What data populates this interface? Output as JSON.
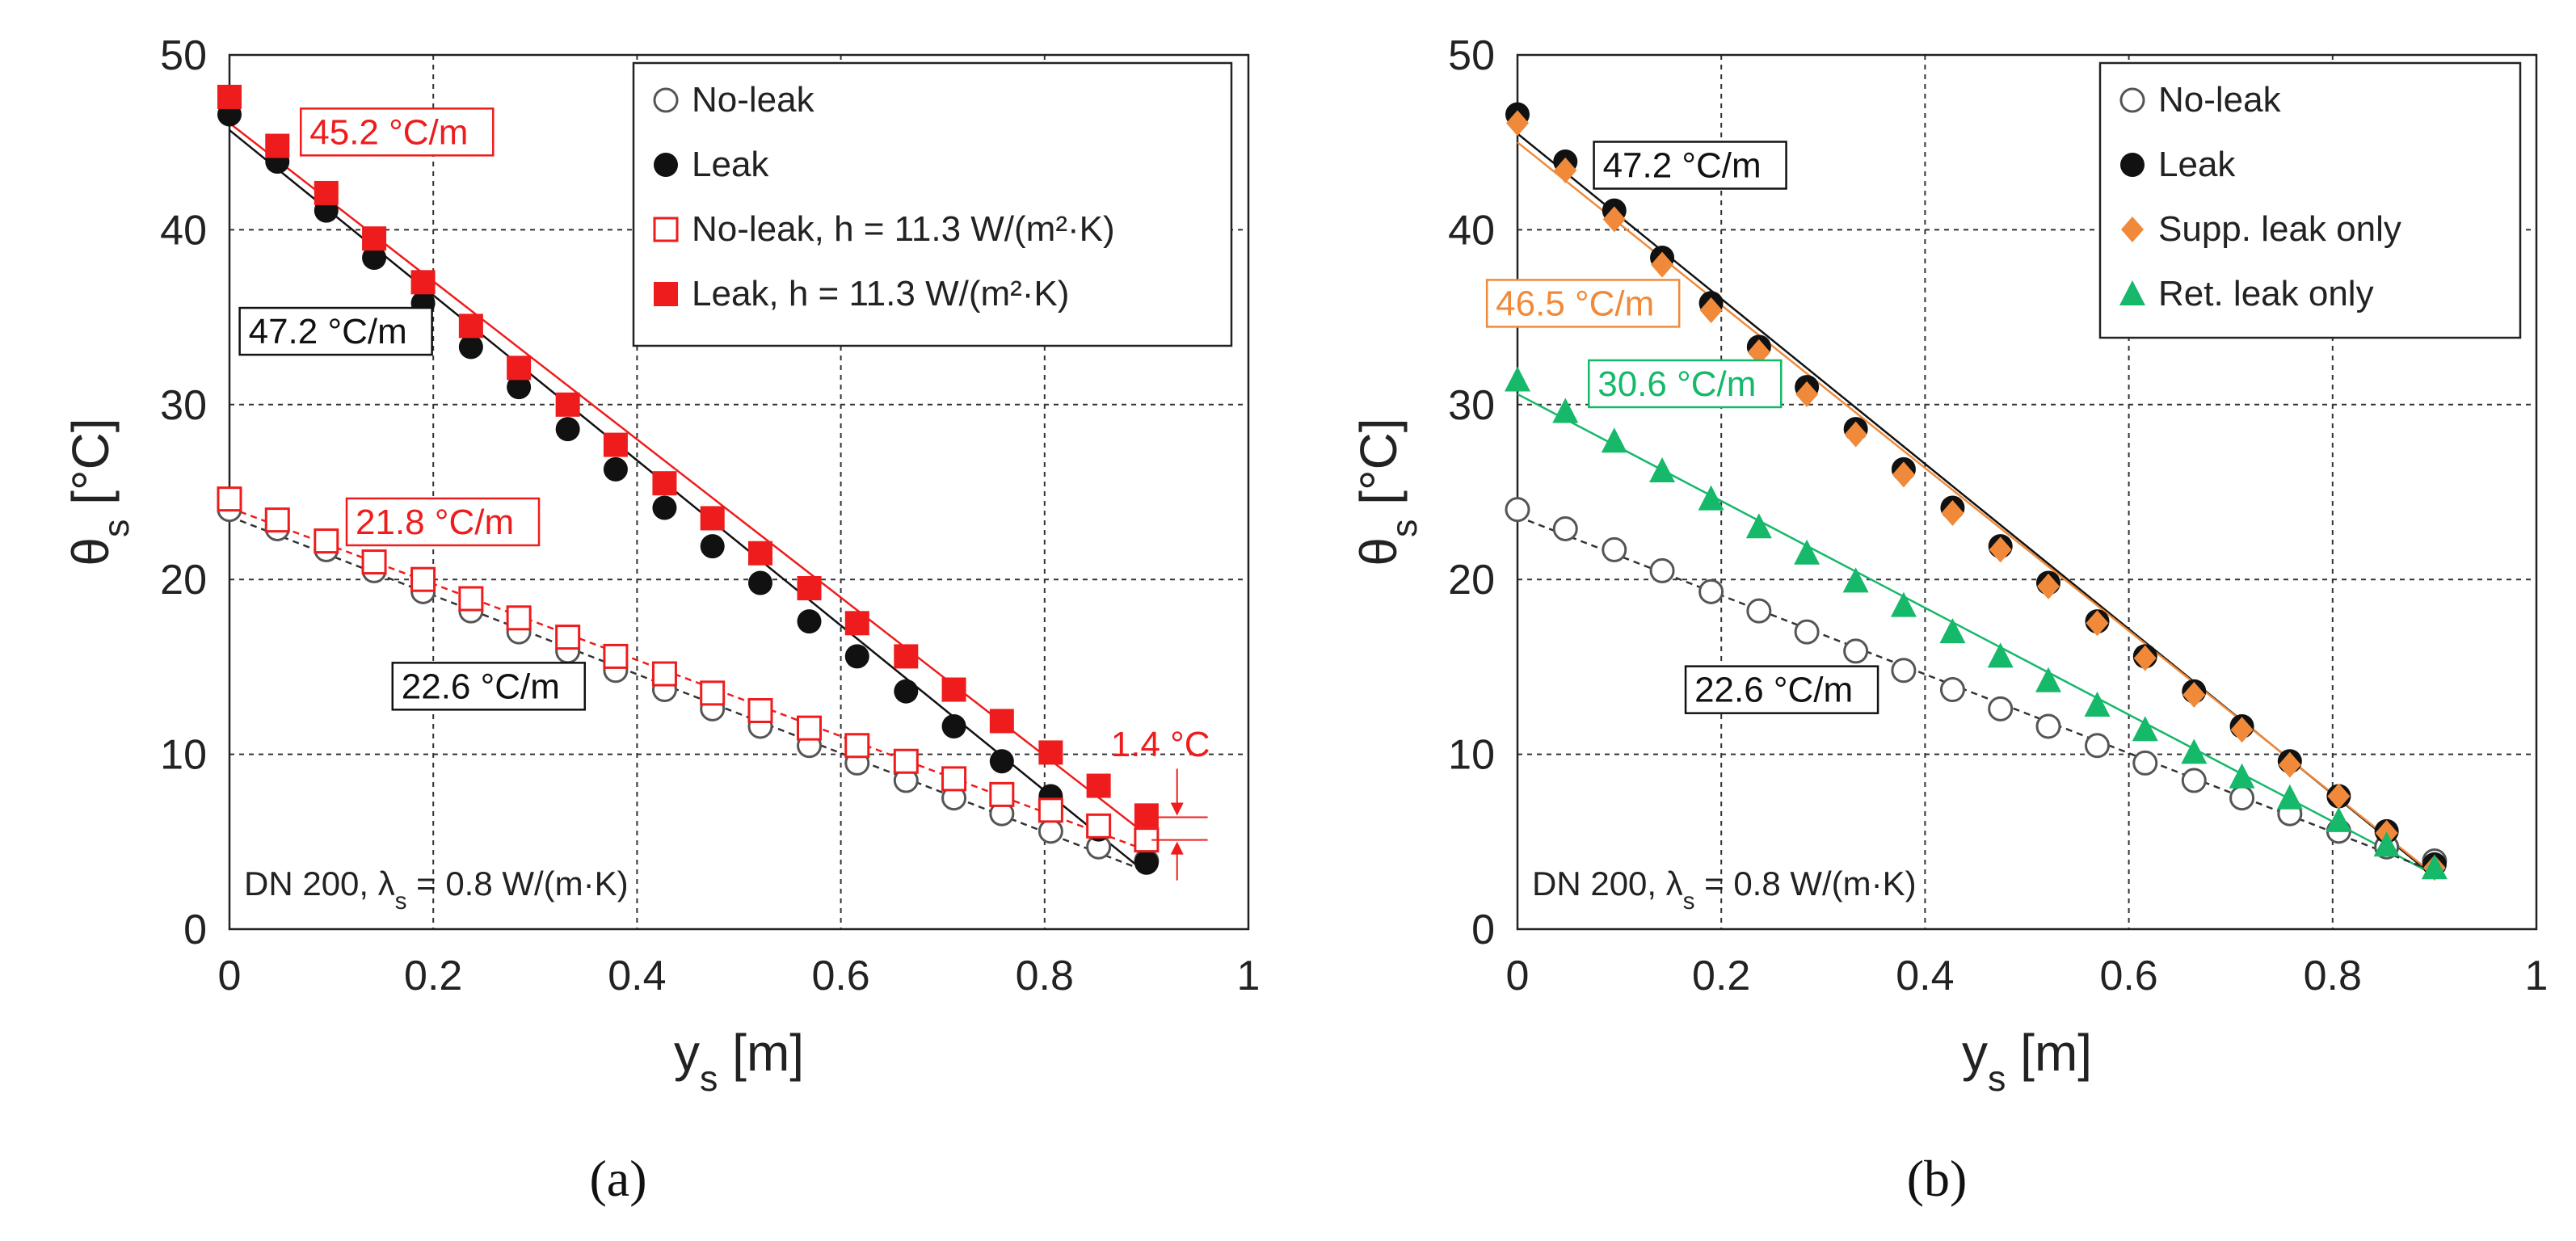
{
  "colors": {
    "black": "#111111",
    "gray": "#555555",
    "red": "#ee1c1c",
    "orange": "#f08a3a",
    "green": "#16b86a"
  },
  "chart_data": [
    {
      "type": "scatter",
      "panel_label": "(a)",
      "title": "",
      "xlabel": "y",
      "xlabel_sub": "s",
      "xlabel_unit": " [m]",
      "ylabel": "θ",
      "ylabel_sub": "s",
      "ylabel_unit": " [°C]",
      "xlim": [
        0,
        1
      ],
      "ylim": [
        0,
        50
      ],
      "xticks": [
        "0",
        "0.2",
        "0.4",
        "0.6",
        "0.8",
        "1"
      ],
      "yticks": [
        "0",
        "10",
        "20",
        "30",
        "40",
        "50"
      ],
      "legend_position": "top-right",
      "x": [
        0,
        0.047,
        0.095,
        0.142,
        0.19,
        0.237,
        0.284,
        0.332,
        0.379,
        0.427,
        0.474,
        0.521,
        0.569,
        0.616,
        0.664,
        0.711,
        0.758,
        0.806,
        0.853,
        0.9
      ],
      "series": [
        {
          "name": "No-leak",
          "marker": "circle-open",
          "color": "#555555",
          "values": [
            24.0,
            22.9,
            21.7,
            20.5,
            19.3,
            18.2,
            17.0,
            15.9,
            14.8,
            13.7,
            12.6,
            11.6,
            10.5,
            9.5,
            8.5,
            7.5,
            6.6,
            5.6,
            4.7,
            3.9
          ]
        },
        {
          "name": "Leak",
          "marker": "circle-filled",
          "color": "#111111",
          "values": [
            46.6,
            43.9,
            41.1,
            38.4,
            35.8,
            33.3,
            31.0,
            28.6,
            26.3,
            24.1,
            21.9,
            19.8,
            17.6,
            15.6,
            13.6,
            11.6,
            9.6,
            7.6,
            5.7,
            3.8
          ]
        },
        {
          "name": "No-leak, h = 11.3 W/(m²·K)",
          "marker": "square-open",
          "color": "#ee1c1c",
          "values": [
            24.6,
            23.4,
            22.2,
            21.0,
            20.0,
            18.9,
            17.8,
            16.7,
            15.6,
            14.6,
            13.5,
            12.5,
            11.5,
            10.5,
            9.6,
            8.6,
            7.7,
            6.8,
            5.9,
            5.1
          ]
        },
        {
          "name": "Leak, h = 11.3 W/(m²·K)",
          "marker": "square-filled",
          "color": "#ee1c1c",
          "values": [
            47.6,
            44.8,
            42.1,
            39.5,
            37.0,
            34.5,
            32.1,
            30.0,
            27.7,
            25.5,
            23.5,
            21.5,
            19.5,
            17.5,
            15.6,
            13.7,
            11.9,
            10.1,
            8.2,
            6.5
          ]
        }
      ],
      "fit_lines": [
        {
          "color": "#ee1c1c",
          "dashed": false,
          "x": [
            0,
            0.9
          ],
          "y": [
            46.1,
            5.4
          ]
        },
        {
          "color": "#111111",
          "dashed": false,
          "x": [
            0,
            0.9
          ],
          "y": [
            45.7,
            3.2
          ]
        },
        {
          "color": "#ee1c1c",
          "dashed": true,
          "x": [
            0,
            0.9
          ],
          "y": [
            24.1,
            4.5
          ]
        },
        {
          "color": "#333333",
          "dashed": true,
          "x": [
            0,
            0.9
          ],
          "y": [
            23.6,
            3.3
          ]
        }
      ],
      "annotations": [
        {
          "text": "45.2 °C/m",
          "color": "#ee1c1c",
          "x": 0.07,
          "y": 44.9
        },
        {
          "text": "47.2 °C/m",
          "color": "#111111",
          "x": 0.01,
          "y": 33.5
        },
        {
          "text": "21.8 °C/m",
          "color": "#ee1c1c",
          "x": 0.115,
          "y": 22.6
        },
        {
          "text": "22.6 °C/m",
          "color": "#111111",
          "x": 0.16,
          "y": 13.2
        },
        {
          "text": "1.4 °C",
          "color": "#ee1c1c",
          "x": 0.865,
          "y": 9.9
        }
      ],
      "note": "DN 200, λ",
      "note_sub": "s",
      "note_rest": " = 0.8 W/(m·K)"
    },
    {
      "type": "scatter",
      "panel_label": "(b)",
      "title": "",
      "xlabel": "y",
      "xlabel_sub": "s",
      "xlabel_unit": " [m]",
      "ylabel": "θ",
      "ylabel_sub": "s",
      "ylabel_unit": " [°C]",
      "xlim": [
        0,
        1
      ],
      "ylim": [
        0,
        50
      ],
      "xticks": [
        "0",
        "0.2",
        "0.4",
        "0.6",
        "0.8",
        "1"
      ],
      "yticks": [
        "0",
        "10",
        "20",
        "30",
        "40",
        "50"
      ],
      "legend_position": "top-right",
      "x": [
        0,
        0.047,
        0.095,
        0.142,
        0.19,
        0.237,
        0.284,
        0.332,
        0.379,
        0.427,
        0.474,
        0.521,
        0.569,
        0.616,
        0.664,
        0.711,
        0.758,
        0.806,
        0.853,
        0.9
      ],
      "series": [
        {
          "name": "No-leak",
          "marker": "circle-open",
          "color": "#555555",
          "values": [
            24.0,
            22.9,
            21.7,
            20.5,
            19.3,
            18.2,
            17.0,
            15.9,
            14.8,
            13.7,
            12.6,
            11.6,
            10.5,
            9.5,
            8.5,
            7.5,
            6.6,
            5.6,
            4.7,
            3.9
          ]
        },
        {
          "name": "Leak",
          "marker": "circle-filled",
          "color": "#111111",
          "values": [
            46.6,
            43.9,
            41.1,
            38.4,
            35.8,
            33.3,
            31.0,
            28.6,
            26.3,
            24.1,
            21.9,
            19.8,
            17.6,
            15.6,
            13.6,
            11.6,
            9.6,
            7.6,
            5.6,
            3.7
          ]
        },
        {
          "name": "Supp. leak only",
          "marker": "diamond",
          "color": "#f08a3a",
          "values": [
            46.1,
            43.4,
            40.6,
            38.0,
            35.4,
            33.0,
            30.6,
            28.3,
            26.0,
            23.8,
            21.7,
            19.6,
            17.5,
            15.5,
            13.4,
            11.4,
            9.4,
            7.6,
            5.5,
            3.5
          ]
        },
        {
          "name": "Ret. leak only",
          "marker": "triangle",
          "color": "#16b86a",
          "values": [
            31.4,
            29.6,
            27.9,
            26.2,
            24.6,
            23.0,
            21.5,
            19.9,
            18.5,
            17.0,
            15.6,
            14.2,
            12.8,
            11.4,
            10.1,
            8.7,
            7.5,
            6.2,
            4.8,
            3.5
          ]
        }
      ],
      "fit_lines": [
        {
          "color": "#111111",
          "dashed": false,
          "x": [
            0,
            0.9
          ],
          "y": [
            45.5,
            3.0
          ]
        },
        {
          "color": "#f08a3a",
          "dashed": false,
          "x": [
            0,
            0.9
          ],
          "y": [
            45.0,
            3.1
          ]
        },
        {
          "color": "#16b86a",
          "dashed": false,
          "x": [
            0,
            0.9
          ],
          "y": [
            30.6,
            3.1
          ]
        },
        {
          "color": "#333333",
          "dashed": true,
          "x": [
            0,
            0.9
          ],
          "y": [
            23.6,
            3.3
          ]
        }
      ],
      "annotations": [
        {
          "text": "47.2 °C/m",
          "color": "#111111",
          "x": 0.075,
          "y": 43.0
        },
        {
          "text": "46.5 °C/m",
          "color": "#f08a3a",
          "x": -0.03,
          "y": 35.1
        },
        {
          "text": "30.6 °C/m",
          "color": "#16b86a",
          "x": 0.07,
          "y": 30.5
        },
        {
          "text": "22.6 °C/m",
          "color": "#111111",
          "x": 0.165,
          "y": 13.0
        }
      ],
      "note": "DN 200, λ",
      "note_sub": "s",
      "note_rest": " = 0.8 W/(m·K)"
    }
  ]
}
